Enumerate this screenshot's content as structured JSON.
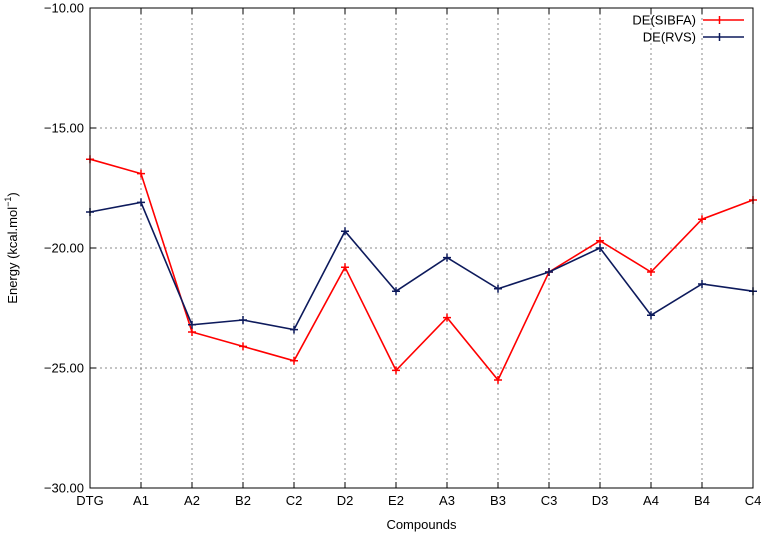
{
  "chart_data": {
    "type": "line",
    "categories": [
      "DTG",
      "A1",
      "A2",
      "B2",
      "C2",
      "D2",
      "E2",
      "A3",
      "B3",
      "C3",
      "D3",
      "A4",
      "B4",
      "C4"
    ],
    "series": [
      {
        "name": "DE(SIBFA)",
        "color": "#ff0000",
        "values": [
          -16.3,
          -16.9,
          -23.5,
          -24.1,
          -24.7,
          -20.8,
          -25.1,
          -22.9,
          -25.5,
          -21.0,
          -19.7,
          -21.0,
          -18.8,
          -18.0
        ]
      },
      {
        "name": "DE(RVS)",
        "color": "#0d1a5c",
        "values": [
          -18.5,
          -18.1,
          -23.2,
          -23.0,
          -23.4,
          -19.3,
          -21.8,
          -20.4,
          -21.7,
          -21.0,
          -20.0,
          -22.8,
          -21.5,
          -21.8
        ]
      }
    ],
    "xlabel": "Compounds",
    "ylabel": "Energy (kcal.mol",
    "ylabel_sup": "−1",
    "ylabel_close": ")",
    "ylim": [
      -30,
      -10
    ],
    "yticks": [
      -30,
      -25,
      -20,
      -15,
      -10
    ],
    "ytick_labels": [
      "−30.00",
      "−25.00",
      "−20.00",
      "−15.00",
      "−10.00"
    ],
    "grid": true,
    "legend_position": "top-right"
  }
}
